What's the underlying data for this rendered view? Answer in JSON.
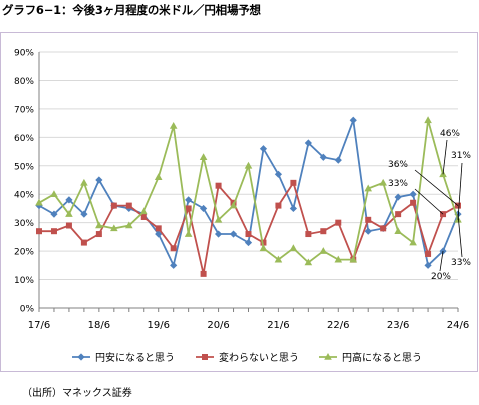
{
  "title": "グラフ6−1：今後3ヶ月程度の米ドル／円相場予想",
  "source": "（出所）マネックス証券",
  "chart_data": {
    "type": "line",
    "title": "",
    "xlabel": "",
    "ylabel": "",
    "ylim": [
      0,
      90
    ],
    "y_ticks": [
      "0%",
      "10%",
      "20%",
      "30%",
      "40%",
      "50%",
      "60%",
      "70%",
      "80%",
      "90%"
    ],
    "x_tick_labels": [
      "17/6",
      "18/6",
      "19/6",
      "20/6",
      "21/6",
      "22/6",
      "23/6",
      "24/6"
    ],
    "x_tick_index": [
      0,
      4,
      8,
      12,
      16,
      20,
      24,
      28
    ],
    "grid": "horizontal",
    "legend_position": "bottom",
    "series": [
      {
        "name": "円安になると思う",
        "color": "#4f81bd",
        "marker": "diamond",
        "values": [
          36,
          33,
          38,
          33,
          45,
          36,
          35,
          33,
          26,
          15,
          38,
          35,
          26,
          26,
          23,
          56,
          47,
          35,
          58,
          53,
          52,
          66,
          27,
          28,
          39,
          40,
          15,
          20,
          33
        ]
      },
      {
        "name": "変わらないと思う",
        "color": "#c0504d",
        "marker": "square",
        "values": [
          27,
          27,
          29,
          23,
          26,
          36,
          36,
          32,
          28,
          21,
          35,
          12,
          43,
          37,
          26,
          23,
          36,
          44,
          26,
          27,
          30,
          17,
          31,
          28,
          33,
          37,
          19,
          33,
          36
        ]
      },
      {
        "name": "円高になると思う",
        "color": "#9bbb59",
        "marker": "triangle",
        "values": [
          37,
          40,
          33,
          44,
          29,
          28,
          29,
          34,
          46,
          64,
          26,
          53,
          31,
          36,
          50,
          21,
          17,
          21,
          16,
          20,
          17,
          17,
          42,
          44,
          27,
          23,
          66,
          47,
          31
        ]
      }
    ],
    "annotations": [
      "46%",
      "36%",
      "33%",
      "31%",
      "20%",
      "33%"
    ]
  }
}
